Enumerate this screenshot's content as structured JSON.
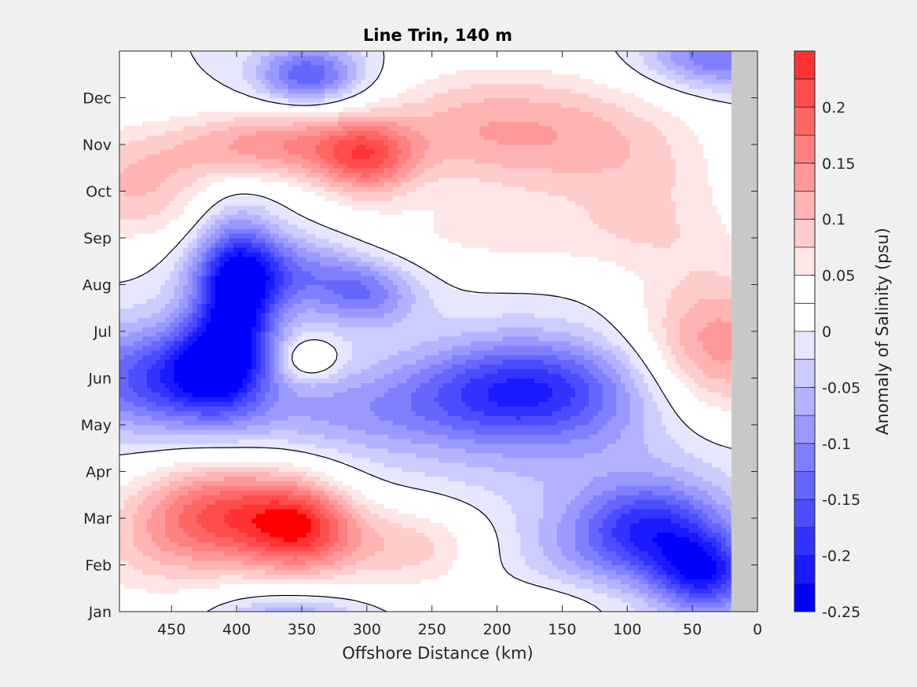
{
  "chart_data": {
    "type": "heatmap",
    "subtype": "filled-contour",
    "title": "Line Trin, 140 m",
    "xlabel": "Offshore Distance (km)",
    "ylabel": "",
    "colorbar_label": "Anomaly of Salinity (psu)",
    "x_axis": {
      "range": [
        490,
        0
      ],
      "reversed": true,
      "ticks": [
        450,
        400,
        350,
        300,
        250,
        200,
        150,
        100,
        50,
        0
      ],
      "tick_labels": [
        "450",
        "400",
        "350",
        "300",
        "250",
        "200",
        "150",
        "100",
        "50",
        "0"
      ]
    },
    "y_axis": {
      "range": [
        1,
        13
      ],
      "ticks": [
        1,
        2,
        3,
        4,
        5,
        6,
        7,
        8,
        9,
        10,
        11,
        12
      ],
      "tick_labels": [
        "Jan",
        "Feb",
        "Mar",
        "Apr",
        "May",
        "Jun",
        "Jul",
        "Aug",
        "Sep",
        "Oct",
        "Nov",
        "Dec"
      ]
    },
    "colorbar": {
      "range": [
        -0.25,
        0.25
      ],
      "ticks": [
        -0.25,
        -0.2,
        -0.15,
        -0.1,
        -0.05,
        0,
        0.05,
        0.1,
        0.15,
        0.2
      ],
      "tick_labels": [
        "-0.25",
        "-0.2",
        "-0.15",
        "-0.1",
        "-0.05",
        "0",
        "0.05",
        "0.1",
        "0.15",
        "0.2"
      ],
      "levels": [
        -0.25,
        -0.225,
        -0.2,
        -0.175,
        -0.15,
        -0.125,
        -0.1,
        -0.075,
        -0.05,
        -0.025,
        0,
        0.025,
        0.05,
        0.075,
        0.1,
        0.125,
        0.15,
        0.175,
        0.2,
        0.225,
        0.25
      ],
      "colors": [
        "#0000ff",
        "#1a1aff",
        "#3333ff",
        "#4d4dff",
        "#6666ff",
        "#8080ff",
        "#9999ff",
        "#b3b3ff",
        "#ccccff",
        "#e6e6ff",
        "#ffffff",
        "#ffffff",
        "#ffe6e6",
        "#ffcccc",
        "#ffb3b3",
        "#ff9999",
        "#ff8080",
        "#ff6666",
        "#ff4d4d",
        "#ff3333",
        "#ff1a1a",
        "#ff0000"
      ]
    },
    "land_mask": {
      "x_from": 20,
      "x_to": 0,
      "color": "#c8c8c8"
    },
    "zero_contour_line": true,
    "features": [
      {
        "x": 345,
        "y": 12.5,
        "amp": -0.15,
        "sx": 28,
        "sy": 0.45
      },
      {
        "x": 30,
        "y": 12.9,
        "amp": -0.13,
        "sx": 40,
        "sy": 0.5
      },
      {
        "x": 370,
        "y": 11.0,
        "amp": 0.14,
        "sx": 55,
        "sy": 0.55
      },
      {
        "x": 300,
        "y": 10.7,
        "amp": 0.15,
        "sx": 28,
        "sy": 0.6
      },
      {
        "x": 160,
        "y": 11.2,
        "amp": 0.11,
        "sx": 65,
        "sy": 1.0
      },
      {
        "x": 235,
        "y": 11.5,
        "amp": 0.05,
        "sx": 45,
        "sy": 0.9
      },
      {
        "x": 480,
        "y": 10.1,
        "amp": 0.1,
        "sx": 45,
        "sy": 0.9
      },
      {
        "x": 75,
        "y": 10.0,
        "amp": 0.05,
        "sx": 45,
        "sy": 1.2
      },
      {
        "x": 200,
        "y": 9.0,
        "amp": 0.05,
        "sx": 110,
        "sy": 0.6
      },
      {
        "x": 400,
        "y": 7.7,
        "amp": -0.22,
        "sx": 22,
        "sy": 1.2
      },
      {
        "x": 365,
        "y": 8.3,
        "amp": -0.12,
        "sx": 45,
        "sy": 0.6
      },
      {
        "x": 300,
        "y": 7.8,
        "amp": -0.1,
        "sx": 28,
        "sy": 0.5
      },
      {
        "x": 460,
        "y": 6.0,
        "amp": -0.16,
        "sx": 50,
        "sy": 0.8
      },
      {
        "x": 420,
        "y": 6.3,
        "amp": -0.12,
        "sx": 25,
        "sy": 0.7
      },
      {
        "x": 180,
        "y": 5.8,
        "amp": -0.16,
        "sx": 60,
        "sy": 0.75
      },
      {
        "x": 320,
        "y": 5.3,
        "amp": -0.06,
        "sx": 70,
        "sy": 0.6
      },
      {
        "x": 150,
        "y": 5.0,
        "amp": -0.06,
        "sx": 110,
        "sy": 1.2
      },
      {
        "x": 345,
        "y": 6.4,
        "amp": 0.08,
        "sx": 16,
        "sy": 0.3
      },
      {
        "x": 30,
        "y": 6.6,
        "amp": 0.15,
        "sx": 45,
        "sy": 1.2
      },
      {
        "x": 410,
        "y": 3.1,
        "amp": 0.18,
        "sx": 45,
        "sy": 0.8
      },
      {
        "x": 350,
        "y": 2.8,
        "amp": 0.18,
        "sx": 30,
        "sy": 0.7
      },
      {
        "x": 270,
        "y": 2.4,
        "amp": 0.09,
        "sx": 45,
        "sy": 0.7
      },
      {
        "x": 470,
        "y": 2.3,
        "amp": 0.06,
        "sx": 50,
        "sy": 1.0
      },
      {
        "x": 165,
        "y": 1.2,
        "amp": 0.04,
        "sx": 45,
        "sy": 0.4
      },
      {
        "x": 80,
        "y": 2.8,
        "amp": -0.17,
        "sx": 40,
        "sy": 0.7
      },
      {
        "x": 40,
        "y": 1.8,
        "amp": -0.19,
        "sx": 28,
        "sy": 0.6
      },
      {
        "x": 130,
        "y": 2.2,
        "amp": -0.05,
        "sx": 50,
        "sy": 0.8
      },
      {
        "x": 360,
        "y": 0.9,
        "amp": -0.08,
        "sx": 40,
        "sy": 0.35
      }
    ]
  }
}
